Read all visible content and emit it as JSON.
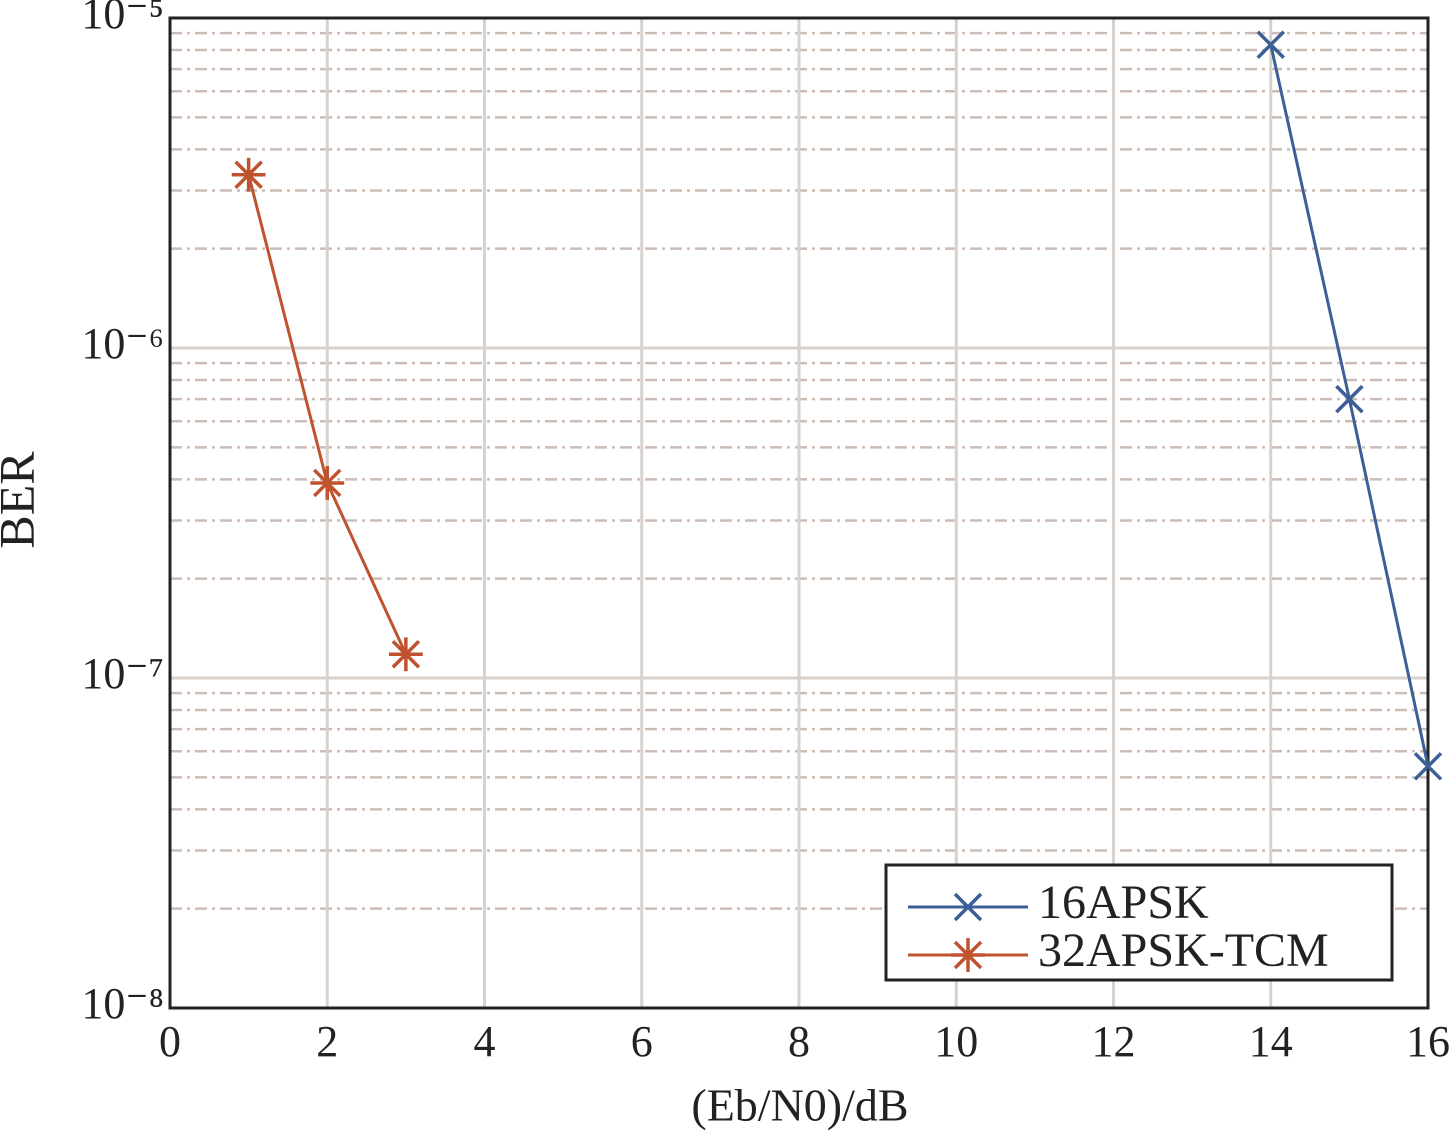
{
  "chart_data": {
    "type": "line",
    "xlabel": "(Eb/N0)/dB",
    "ylabel": "BER",
    "xlim": [
      0,
      16
    ],
    "xticks": [
      0,
      2,
      4,
      6,
      8,
      10,
      12,
      14,
      16
    ],
    "ylim": [
      1e-08,
      1e-05
    ],
    "yscale": "log",
    "yticks": [
      {
        "value": 1e-08,
        "label": "10⁻⁸"
      },
      {
        "value": 1e-07,
        "label": "10⁻⁷"
      },
      {
        "value": 1e-06,
        "label": "10⁻⁶"
      },
      {
        "value": 1e-05,
        "label": "10⁻⁵"
      }
    ],
    "yminor_ticks": [
      2e-08,
      3e-08,
      4e-08,
      5e-08,
      6e-08,
      7e-08,
      8e-08,
      9e-08,
      2e-07,
      3e-07,
      4e-07,
      5e-07,
      6e-07,
      7e-07,
      8e-07,
      9e-07,
      2e-06,
      3e-06,
      4e-06,
      5e-06,
      6e-06,
      7e-06,
      8e-06,
      9e-06
    ],
    "grid": true,
    "legend": "lower right",
    "series": [
      {
        "name": "16APSK",
        "color": "#3d5f97",
        "marker": "x",
        "x": [
          14,
          15,
          16
        ],
        "values": [
          8.3e-06,
          7e-07,
          5.4e-08
        ]
      },
      {
        "name": "32APSK-TCM",
        "color": "#c0532f",
        "marker": "asterisk",
        "x": [
          1,
          2,
          3
        ],
        "values": [
          3.35e-06,
          3.9e-07,
          1.18e-07
        ]
      }
    ]
  }
}
